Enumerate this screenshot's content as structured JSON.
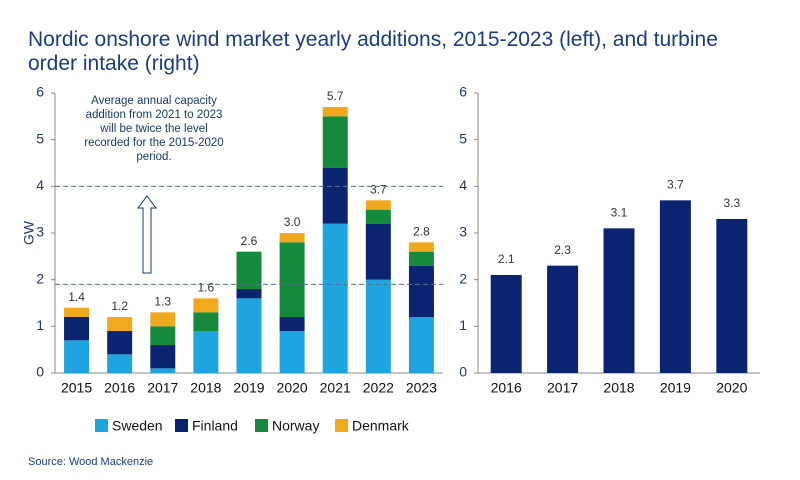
{
  "chart_data": [
    {
      "type": "stacked_bar",
      "title": "Nordic onshore wind market yearly additions, 2015-2023 (left), and turbine order intake (right)",
      "ylabel": "GW",
      "categories": [
        "2015",
        "2016",
        "2017",
        "2018",
        "2019",
        "2020",
        "2021",
        "2022",
        "2023"
      ],
      "series": [
        {
          "name": "Sweden",
          "color": "#1ea5e0",
          "values": [
            0.7,
            0.4,
            0.1,
            0.9,
            1.6,
            0.9,
            3.2,
            2.0,
            1.2
          ]
        },
        {
          "name": "Finland",
          "color": "#0b2470",
          "values": [
            0.5,
            0.5,
            0.5,
            0,
            0.2,
            0.3,
            1.2,
            1.2,
            1.1
          ]
        },
        {
          "name": "Norway",
          "color": "#168a3c",
          "values": [
            0,
            0,
            0.4,
            0.4,
            0.8,
            1.6,
            1.1,
            0.3,
            0.3
          ]
        },
        {
          "name": "Denmark",
          "color": "#f0a81c",
          "values": [
            0.2,
            0.3,
            0.3,
            0.3,
            0,
            0.2,
            0.2,
            0.2,
            0.2
          ]
        }
      ],
      "totals": [
        1.4,
        1.2,
        1.3,
        1.6,
        2.6,
        3.0,
        5.7,
        3.7,
        2.8
      ],
      "total_labels": [
        "1.4",
        "1.2",
        "1.3",
        "1.6",
        "2.6",
        "3.0",
        "5.7",
        "3.7",
        "2.8"
      ],
      "reference_lines": [
        1.9,
        4
      ],
      "annotation": "Average annual capacity addition from 2021 to 2023 will be twice the level recorded for the 2015-2020 period.",
      "source": "Source: Wood Mackenzie",
      "ylim": [
        0,
        6
      ],
      "yticks": [
        0,
        1,
        2,
        3,
        4,
        5,
        6
      ]
    },
    {
      "type": "bar",
      "categories": [
        "2016",
        "2017",
        "2018",
        "2019",
        "2020"
      ],
      "values": [
        2.1,
        2.3,
        3.1,
        3.7,
        3.3
      ],
      "color": "#0b2470",
      "ylim": [
        0,
        6
      ],
      "yticks": [
        0,
        1,
        2,
        3,
        4,
        5,
        6
      ]
    }
  ]
}
